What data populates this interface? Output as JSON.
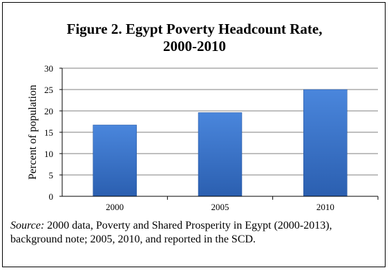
{
  "title_line1": "Figure 2. Egypt Poverty Headcount Rate,",
  "title_line2": "2000-2010",
  "caption": {
    "label": "Source:",
    "text": "  2000 data, Poverty and Shared Prosperity in Egypt (2000-2013), background note; 2005, 2010, and reported in the SCD."
  },
  "colors": {
    "bar": "#3a74cc",
    "bar_dark": "#1f4f99",
    "grid": "#7f7f7f"
  },
  "chart_data": {
    "type": "bar",
    "title": "Figure 2. Egypt Poverty Headcount Rate, 2000-2010",
    "categories": [
      "2000",
      "2005",
      "2010"
    ],
    "values": [
      16.7,
      19.6,
      25.0
    ],
    "ylabel": "Percent of population",
    "xlabel": "",
    "ylim": [
      0,
      30
    ],
    "yticks": [
      "0",
      "5",
      "10",
      "15",
      "20",
      "25",
      "30"
    ],
    "grid": true,
    "legend": "none"
  }
}
